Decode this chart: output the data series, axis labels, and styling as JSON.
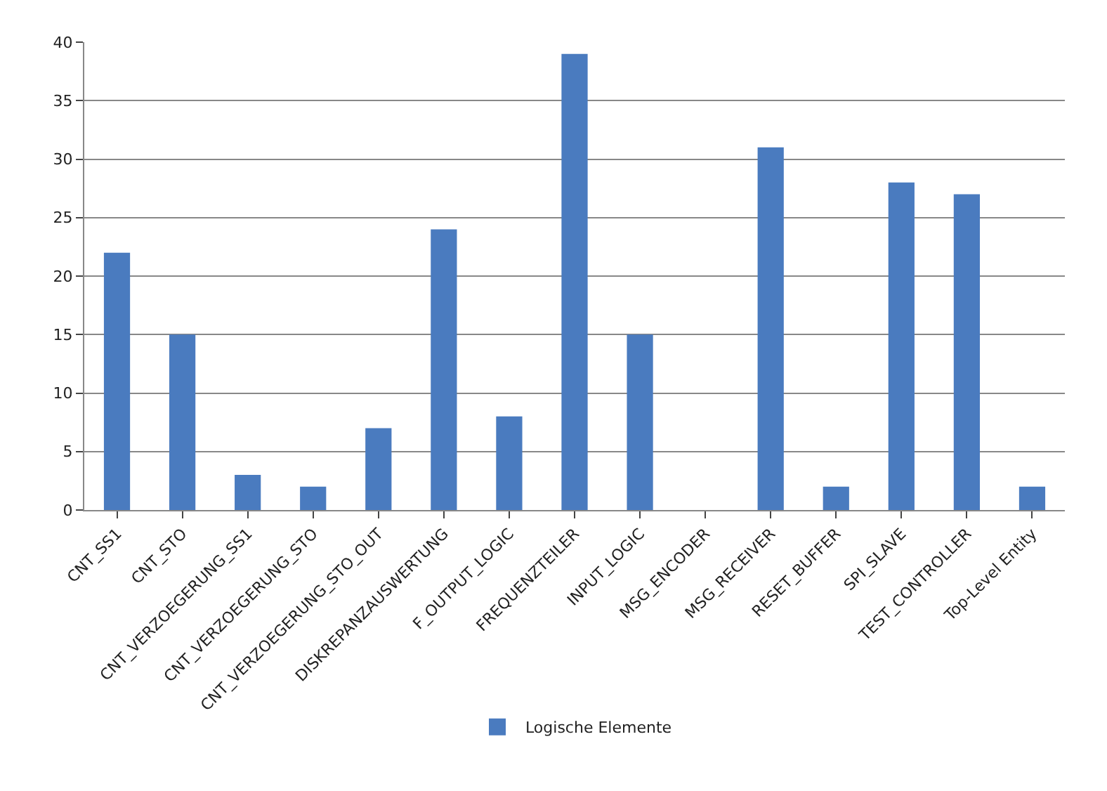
{
  "chart_data": {
    "type": "bar",
    "categories": [
      "CNT_SS1",
      "CNT_STO",
      "CNT_VERZOEGERUNG_SS1",
      "CNT_VERZOEGERUNG_STO",
      "CNT_VERZOEGERUNG_STO_OUT",
      "DISKREPANZAUSWERTUNG",
      "F_OUTPUT_LOGIC",
      "FREQUENZTEILER",
      "INPUT_LOGIC",
      "MSG_ENCODER",
      "MSG_RECEIVER",
      "RESET_BUFFER",
      "SPI_SLAVE",
      "TEST_CONTROLLER",
      "Top-Level Entity"
    ],
    "series": [
      {
        "name": "Logische Elemente",
        "color": "#4a7bbf",
        "values": [
          22,
          15,
          3,
          2,
          7,
          24,
          8,
          39,
          15,
          0,
          31,
          2,
          28,
          27,
          2
        ]
      }
    ],
    "ylim": [
      0,
      40
    ],
    "yticks": [
      0,
      5,
      10,
      15,
      20,
      25,
      30,
      35,
      40
    ],
    "grid": "y",
    "legend": "bottom"
  }
}
